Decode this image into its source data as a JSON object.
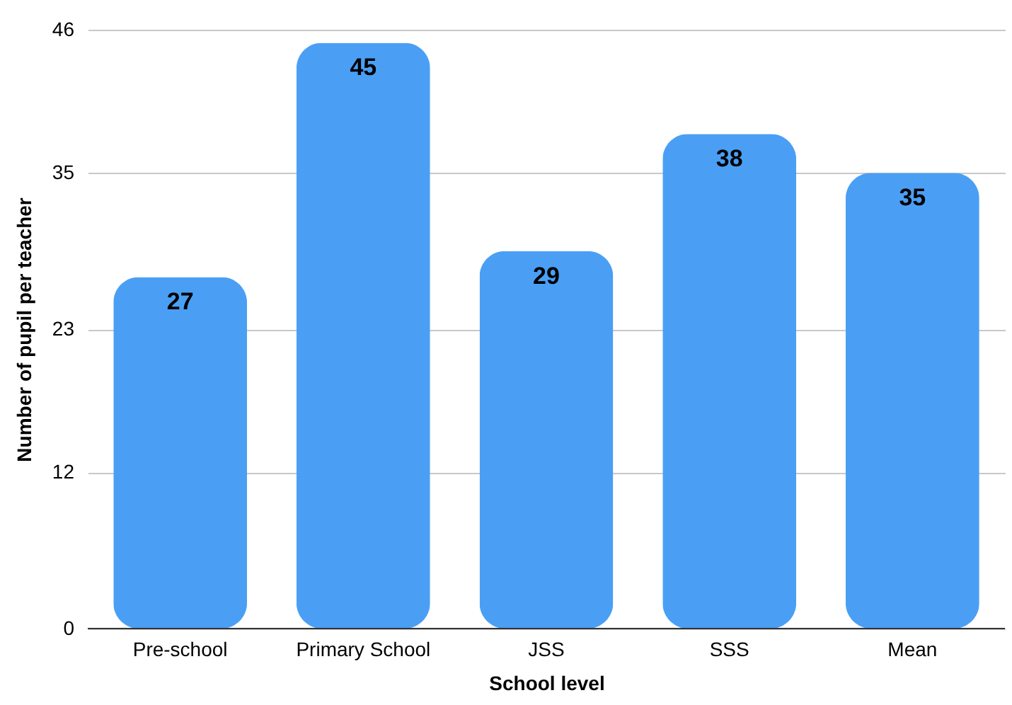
{
  "chart_data": {
    "type": "bar",
    "xlabel": "School level",
    "ylabel": "Number of pupil per teacher",
    "categories": [
      "Pre-school",
      "Primary School",
      "JSS",
      "SSS",
      "Mean"
    ],
    "values": [
      27,
      45,
      29,
      38,
      35
    ],
    "color": "#4a9ff5",
    "ylim": [
      0,
      46
    ],
    "yticks": [
      0,
      12,
      23,
      35,
      46
    ],
    "grid": "y",
    "data_labels": true
  }
}
